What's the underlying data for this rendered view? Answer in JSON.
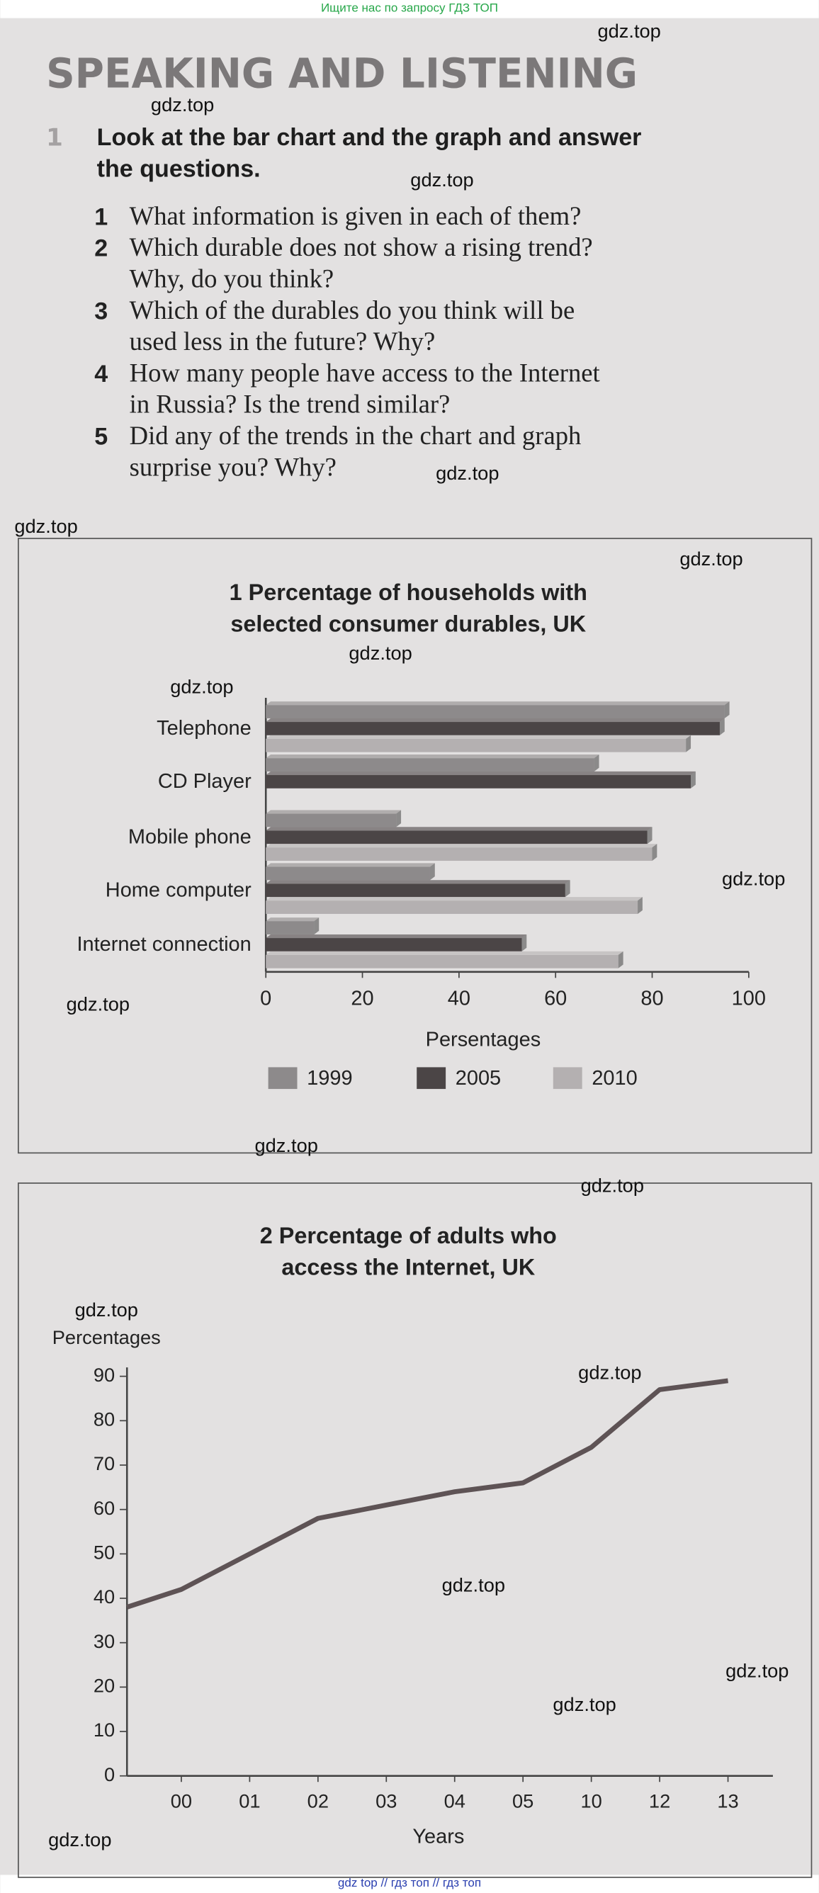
{
  "banner": "Ищите нас по запросу ГДЗ ТОП",
  "footer": "gdz top  //  гдз топ  //  гдз топ",
  "heading": "SPEAKING AND LISTENING",
  "exercise": {
    "number": "1",
    "instruction": [
      "Look at the bar chart and the graph and answer",
      "the questions."
    ],
    "questions": [
      {
        "number": "1",
        "lines": [
          "What information is given in each of them?"
        ]
      },
      {
        "number": "2",
        "lines": [
          "Which durable does not show a rising trend?",
          "Why, do you think?"
        ]
      },
      {
        "number": "3",
        "lines": [
          "Which of the durables do you think will be",
          "used less in the future? Why?"
        ]
      },
      {
        "number": "4",
        "lines": [
          "How many people have access to the Internet",
          "in Russia? Is the trend similar?"
        ]
      },
      {
        "number": "5",
        "lines": [
          "Did any of the trends in the chart and graph",
          "surprise you? Why?"
        ]
      }
    ]
  },
  "watermarks": [
    "gdz.top",
    "gdz.top",
    "gdz.top",
    "gdz.top",
    "gdz.top",
    "gdz.top",
    "gdz.top",
    "gdz.top",
    "gdz.top",
    "gdz.top",
    "gdz.top",
    "gdz.top",
    "gdz.top",
    "gdz.top",
    "gdz.top",
    "gdz.top",
    "gdz.top",
    "gdz.top"
  ],
  "chart_data": [
    {
      "type": "hbar",
      "title": [
        "1 Percentage of households with",
        "selected consumer durables, UK"
      ],
      "categories": [
        "Telephone",
        "CD Player",
        "Mobile phone",
        "Home computer",
        "Internet connection"
      ],
      "series": [
        {
          "name": "1999",
          "color": "#8d8a8b",
          "values": [
            95,
            68,
            27,
            34,
            10
          ]
        },
        {
          "name": "2005",
          "color": "#4b4546",
          "values": [
            94,
            88,
            79,
            62,
            53
          ]
        },
        {
          "name": "2010",
          "color": "#b4b0b1",
          "values": [
            87,
            null,
            80,
            77,
            73
          ]
        }
      ],
      "x_label": "Persentages",
      "xlim": [
        0,
        100
      ],
      "xticks": [
        0,
        20,
        40,
        60,
        80,
        100
      ]
    },
    {
      "type": "line",
      "title": [
        "2 Percentage of adults who",
        "access the Internet, UK"
      ],
      "categories": [
        null,
        "00",
        "01",
        "02",
        "03",
        "04",
        "05",
        "10",
        "12",
        "13"
      ],
      "values": [
        38,
        42,
        50,
        58,
        61,
        64,
        66,
        74,
        87,
        89
      ],
      "color": "#5e5355",
      "y_label": "Percentages",
      "x_label": "Years",
      "ylim": [
        0,
        92
      ],
      "yticks": [
        0,
        10,
        20,
        30,
        40,
        50,
        60,
        70,
        80,
        90
      ]
    }
  ]
}
